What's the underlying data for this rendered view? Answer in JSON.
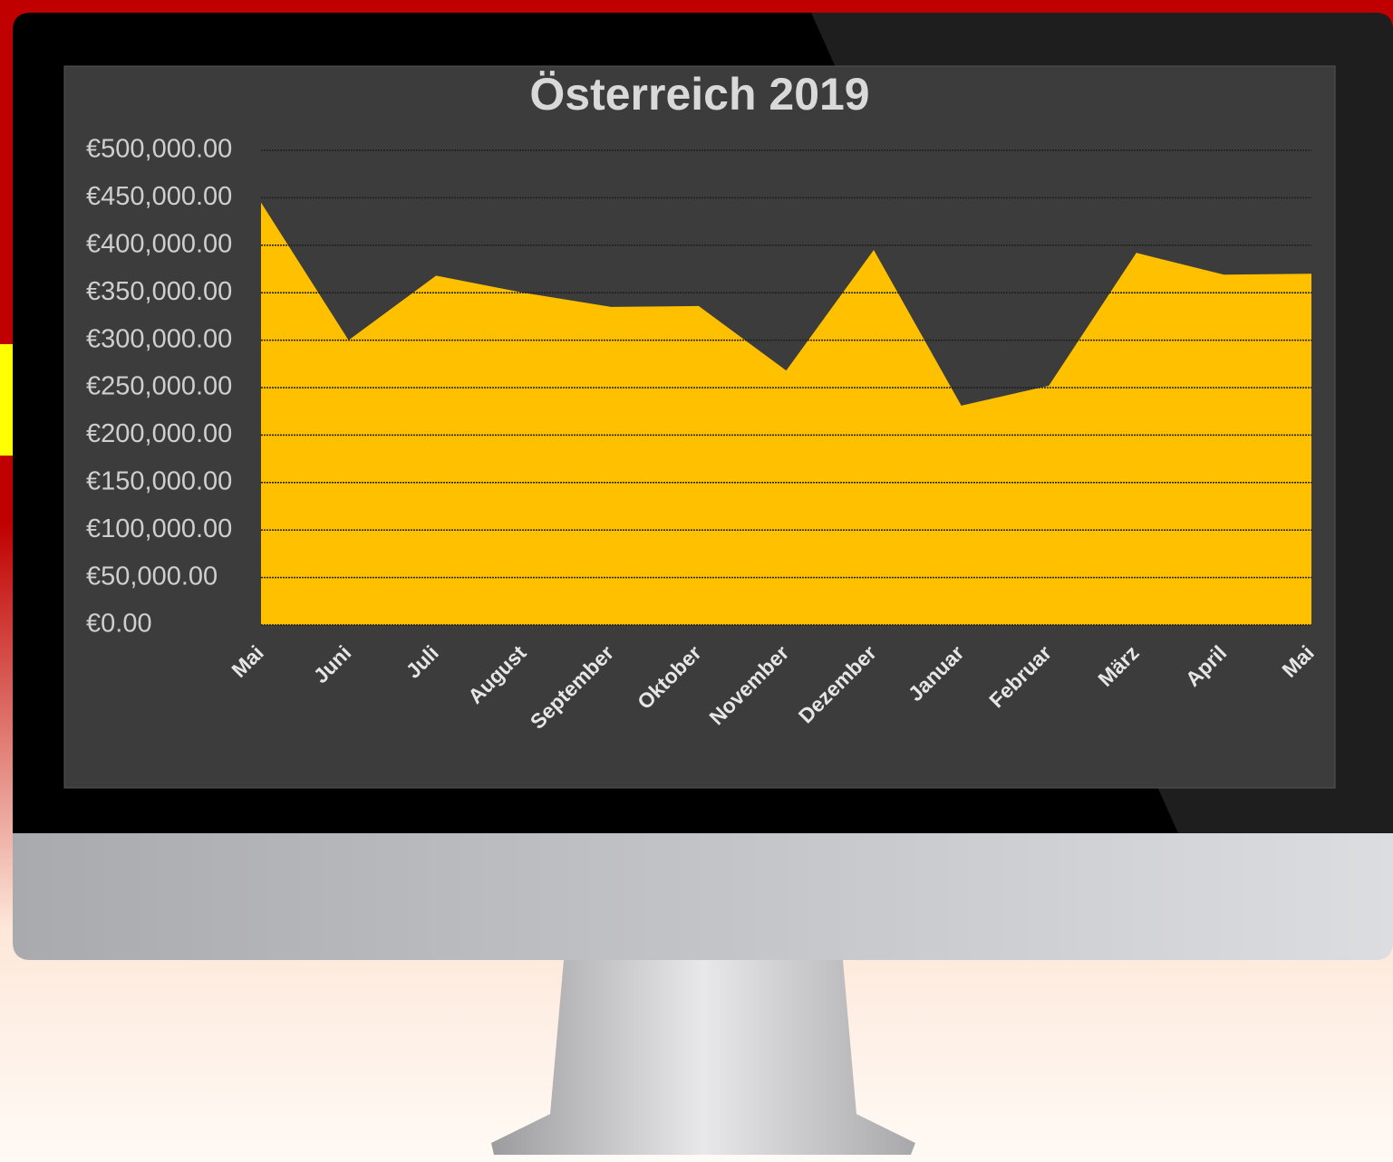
{
  "chart_data": {
    "type": "area",
    "title": "Österreich 2019",
    "categories": [
      "Mai",
      "Juni",
      "Juli",
      "August",
      "September",
      "Oktober",
      "November",
      "Dezember",
      "Januar",
      "Februar",
      "März",
      "April",
      "Mai"
    ],
    "series": [
      {
        "color": "#ffc000",
        "values": [
          445000,
          300000,
          368000,
          350000,
          335000,
          336000,
          268000,
          395000,
          231000,
          252000,
          392000,
          369000,
          370000
        ]
      }
    ],
    "ylim": [
      0,
      500000
    ],
    "yticks": [
      {
        "value": 0,
        "label": "€0.00"
      },
      {
        "value": 50000,
        "label": "€50,000.00"
      },
      {
        "value": 100000,
        "label": "€100,000.00"
      },
      {
        "value": 150000,
        "label": "€150,000.00"
      },
      {
        "value": 200000,
        "label": "€200,000.00"
      },
      {
        "value": 250000,
        "label": "€250,000.00"
      },
      {
        "value": 300000,
        "label": "€300,000.00"
      },
      {
        "value": 350000,
        "label": "€350,000.00"
      },
      {
        "value": 400000,
        "label": "€400,000.00"
      },
      {
        "value": 450000,
        "label": "€450,000.00"
      },
      {
        "value": 500000,
        "label": "€500,000.00"
      }
    ],
    "grid": true
  }
}
